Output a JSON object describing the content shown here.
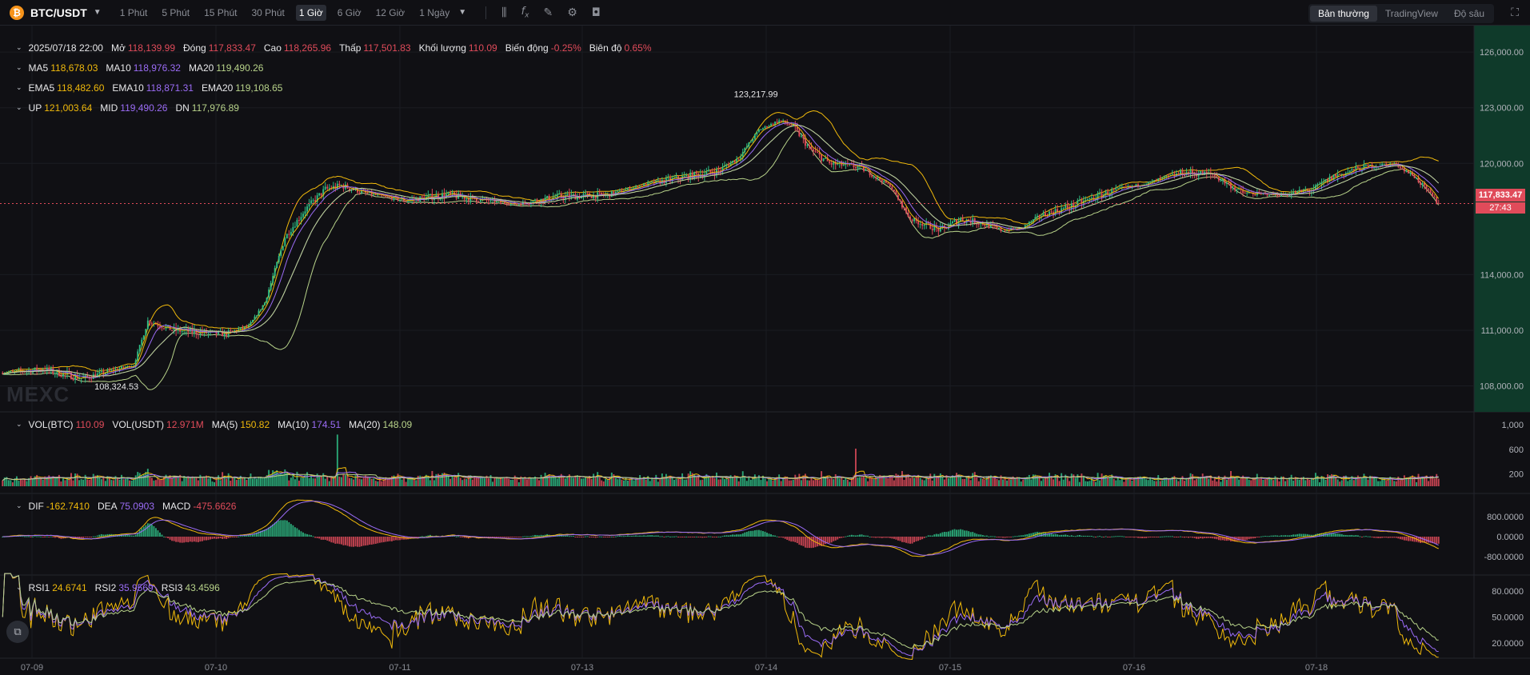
{
  "header": {
    "pair": "BTC/USDT",
    "intervals": [
      "1 Phút",
      "5 Phút",
      "15 Phút",
      "30 Phút",
      "1 Giờ",
      "6 Giờ",
      "12 Giờ",
      "1 Ngày"
    ],
    "active_interval": 4,
    "views": [
      "Bản thường",
      "TradingView",
      "Độ sâu"
    ],
    "active_view": 0
  },
  "ohlc": {
    "date": "2025/07/18 22:00",
    "open_label": "Mở",
    "open": "118,139.99",
    "close_label": "Đóng",
    "close": "117,833.47",
    "high_label": "Cao",
    "high": "118,265.96",
    "low_label": "Thấp",
    "low": "117,501.83",
    "vol_label": "Khối lượng",
    "vol": "110.09",
    "change_label": "Biến động",
    "change": "-0.25%",
    "amp_label": "Biên độ",
    "amp": "0.65%"
  },
  "ma": {
    "ma5_label": "MA5",
    "ma5": "118,678.03",
    "ma10_label": "MA10",
    "ma10": "118,976.32",
    "ma20_label": "MA20",
    "ma20": "119,490.26"
  },
  "ema": {
    "ema5_label": "EMA5",
    "ema5": "118,482.60",
    "ema10_label": "EMA10",
    "ema10": "118,871.31",
    "ema20_label": "EMA20",
    "ema20": "119,108.65"
  },
  "boll": {
    "up_label": "UP",
    "up": "121,003.64",
    "mid_label": "MID",
    "mid": "119,490.26",
    "dn_label": "DN",
    "dn": "117,976.89"
  },
  "vol": {
    "btc_label": "VOL(BTC)",
    "btc": "110.09",
    "usdt_label": "VOL(USDT)",
    "usdt": "12.971M",
    "ma5_label": "MA(5)",
    "ma5": "150.82",
    "ma10_label": "MA(10)",
    "ma10": "174.51",
    "ma20_label": "MA(20)",
    "ma20": "148.09"
  },
  "macd": {
    "dif_label": "DIF",
    "dif": "-162.7410",
    "dea_label": "DEA",
    "dea": "75.0903",
    "macd_label": "MACD",
    "macd": "-475.6626"
  },
  "rsi": {
    "r1_label": "RSI1",
    "r1": "24.6741",
    "r2_label": "RSI2",
    "r2": "35.9569",
    "r3_label": "RSI3",
    "r3": "43.4596"
  },
  "price_axis": [
    "126,000.00",
    "123,000.00",
    "120,000.00",
    "114,000.00",
    "111,000.00",
    "108,000.00"
  ],
  "price_ticks": [
    126000,
    123000,
    120000,
    114000,
    111000,
    108000
  ],
  "vol_axis": [
    "1,000",
    "600",
    "200"
  ],
  "vol_ticks": [
    1000,
    600,
    200
  ],
  "macd_axis": [
    "800.0000",
    "0.0000",
    "-800.0000"
  ],
  "macd_ticks": [
    800,
    0,
    -800
  ],
  "rsi_axis": [
    "80.0000",
    "50.0000",
    "20.0000"
  ],
  "rsi_ticks": [
    80,
    50,
    20
  ],
  "time_axis": [
    "07-09",
    "07-10",
    "07-11",
    "07-13",
    "07-14",
    "07-15",
    "07-16",
    "07-18"
  ],
  "current_price": "117,833.47",
  "countdown": "27:43",
  "high_marker": "123,217.99",
  "low_marker": "108,324.53",
  "watermark": "MEXC",
  "colors": {
    "up": "#2ebd85",
    "down": "#e04b5a",
    "ma5": "#f0b90b",
    "ma10": "#9b6cf6",
    "ma20": "#b8d38a",
    "bg": "#101014"
  },
  "chart_data": {
    "type": "candlestick",
    "price_range": [
      106600,
      127000
    ],
    "anchors": [
      {
        "i": 0,
        "p": 108700
      },
      {
        "i": 20,
        "p": 108900
      },
      {
        "i": 40,
        "p": 108400
      },
      {
        "i": 60,
        "p": 109000
      },
      {
        "i": 65,
        "p": 109100
      },
      {
        "i": 72,
        "p": 111500
      },
      {
        "i": 85,
        "p": 111000
      },
      {
        "i": 110,
        "p": 110800
      },
      {
        "i": 122,
        "p": 111200
      },
      {
        "i": 130,
        "p": 112500
      },
      {
        "i": 140,
        "p": 116000
      },
      {
        "i": 150,
        "p": 117500
      },
      {
        "i": 160,
        "p": 118600
      },
      {
        "i": 168,
        "p": 118800
      },
      {
        "i": 180,
        "p": 118400
      },
      {
        "i": 200,
        "p": 118000
      },
      {
        "i": 220,
        "p": 118300
      },
      {
        "i": 240,
        "p": 118000
      },
      {
        "i": 255,
        "p": 117800
      },
      {
        "i": 275,
        "p": 118200
      },
      {
        "i": 300,
        "p": 118300
      },
      {
        "i": 320,
        "p": 118900
      },
      {
        "i": 340,
        "p": 119300
      },
      {
        "i": 355,
        "p": 119600
      },
      {
        "i": 365,
        "p": 120300
      },
      {
        "i": 375,
        "p": 121800
      },
      {
        "i": 385,
        "p": 122300
      },
      {
        "i": 392,
        "p": 122000
      },
      {
        "i": 400,
        "p": 120800
      },
      {
        "i": 410,
        "p": 120000
      },
      {
        "i": 425,
        "p": 119800
      },
      {
        "i": 440,
        "p": 118800
      },
      {
        "i": 450,
        "p": 117000
      },
      {
        "i": 465,
        "p": 116400
      },
      {
        "i": 475,
        "p": 117000
      },
      {
        "i": 485,
        "p": 116800
      },
      {
        "i": 495,
        "p": 116400
      },
      {
        "i": 505,
        "p": 116500
      },
      {
        "i": 515,
        "p": 117200
      },
      {
        "i": 530,
        "p": 117700
      },
      {
        "i": 550,
        "p": 118500
      },
      {
        "i": 570,
        "p": 119000
      },
      {
        "i": 585,
        "p": 119500
      },
      {
        "i": 600,
        "p": 119400
      },
      {
        "i": 615,
        "p": 118400
      },
      {
        "i": 635,
        "p": 118300
      },
      {
        "i": 650,
        "p": 118600
      },
      {
        "i": 660,
        "p": 119300
      },
      {
        "i": 675,
        "p": 119800
      },
      {
        "i": 690,
        "p": 120000
      },
      {
        "i": 700,
        "p": 119300
      },
      {
        "i": 712,
        "p": 117833
      }
    ],
    "candles_count": 713,
    "high": 123217.99,
    "low": 108324.53,
    "last_close": 117833.47
  }
}
